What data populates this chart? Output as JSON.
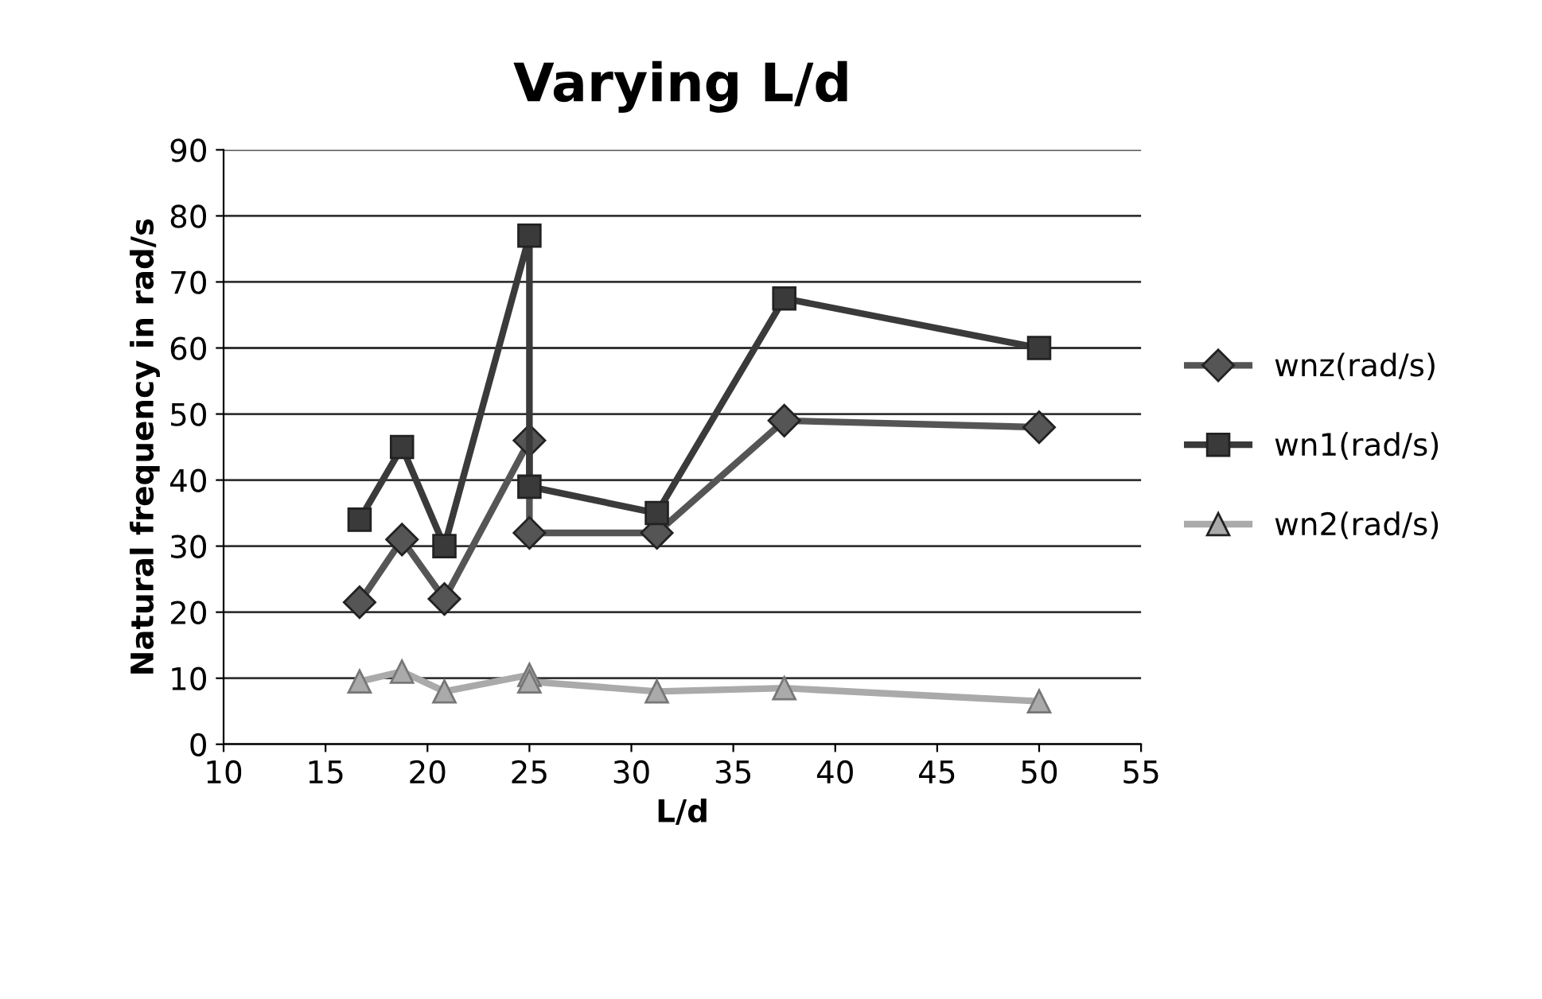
{
  "chart_data": {
    "type": "line",
    "title": "Varying L/d",
    "xlabel": "L/d",
    "ylabel": "Natural frequency in rad/s",
    "x": [
      16.67,
      18.75,
      20.83,
      25,
      25,
      31.25,
      37.5,
      50
    ],
    "series": [
      {
        "name": "wnz(rad/s)",
        "color": "#555555",
        "marker": "diamond",
        "values": [
          21.5,
          31,
          22,
          46,
          32,
          32,
          49,
          48
        ]
      },
      {
        "name": "wn1(rad/s)",
        "color": "#3a3a3a",
        "marker": "square",
        "values": [
          34,
          45,
          30,
          77,
          39,
          35,
          67.5,
          60
        ]
      },
      {
        "name": "wn2(rad/s)",
        "color": "#aaaaaa",
        "marker": "triangle",
        "values": [
          9.5,
          11,
          8,
          10.5,
          9.5,
          8,
          8.5,
          6.5
        ]
      }
    ],
    "xlim": [
      10,
      55
    ],
    "xticks": [
      10,
      15,
      20,
      25,
      30,
      35,
      40,
      45,
      50,
      55
    ],
    "ylim": [
      0,
      90
    ],
    "yticks": [
      0,
      10,
      20,
      30,
      40,
      50,
      60,
      70,
      80,
      90
    ],
    "grid": "y",
    "legend": "right",
    "line_style": "solid"
  }
}
